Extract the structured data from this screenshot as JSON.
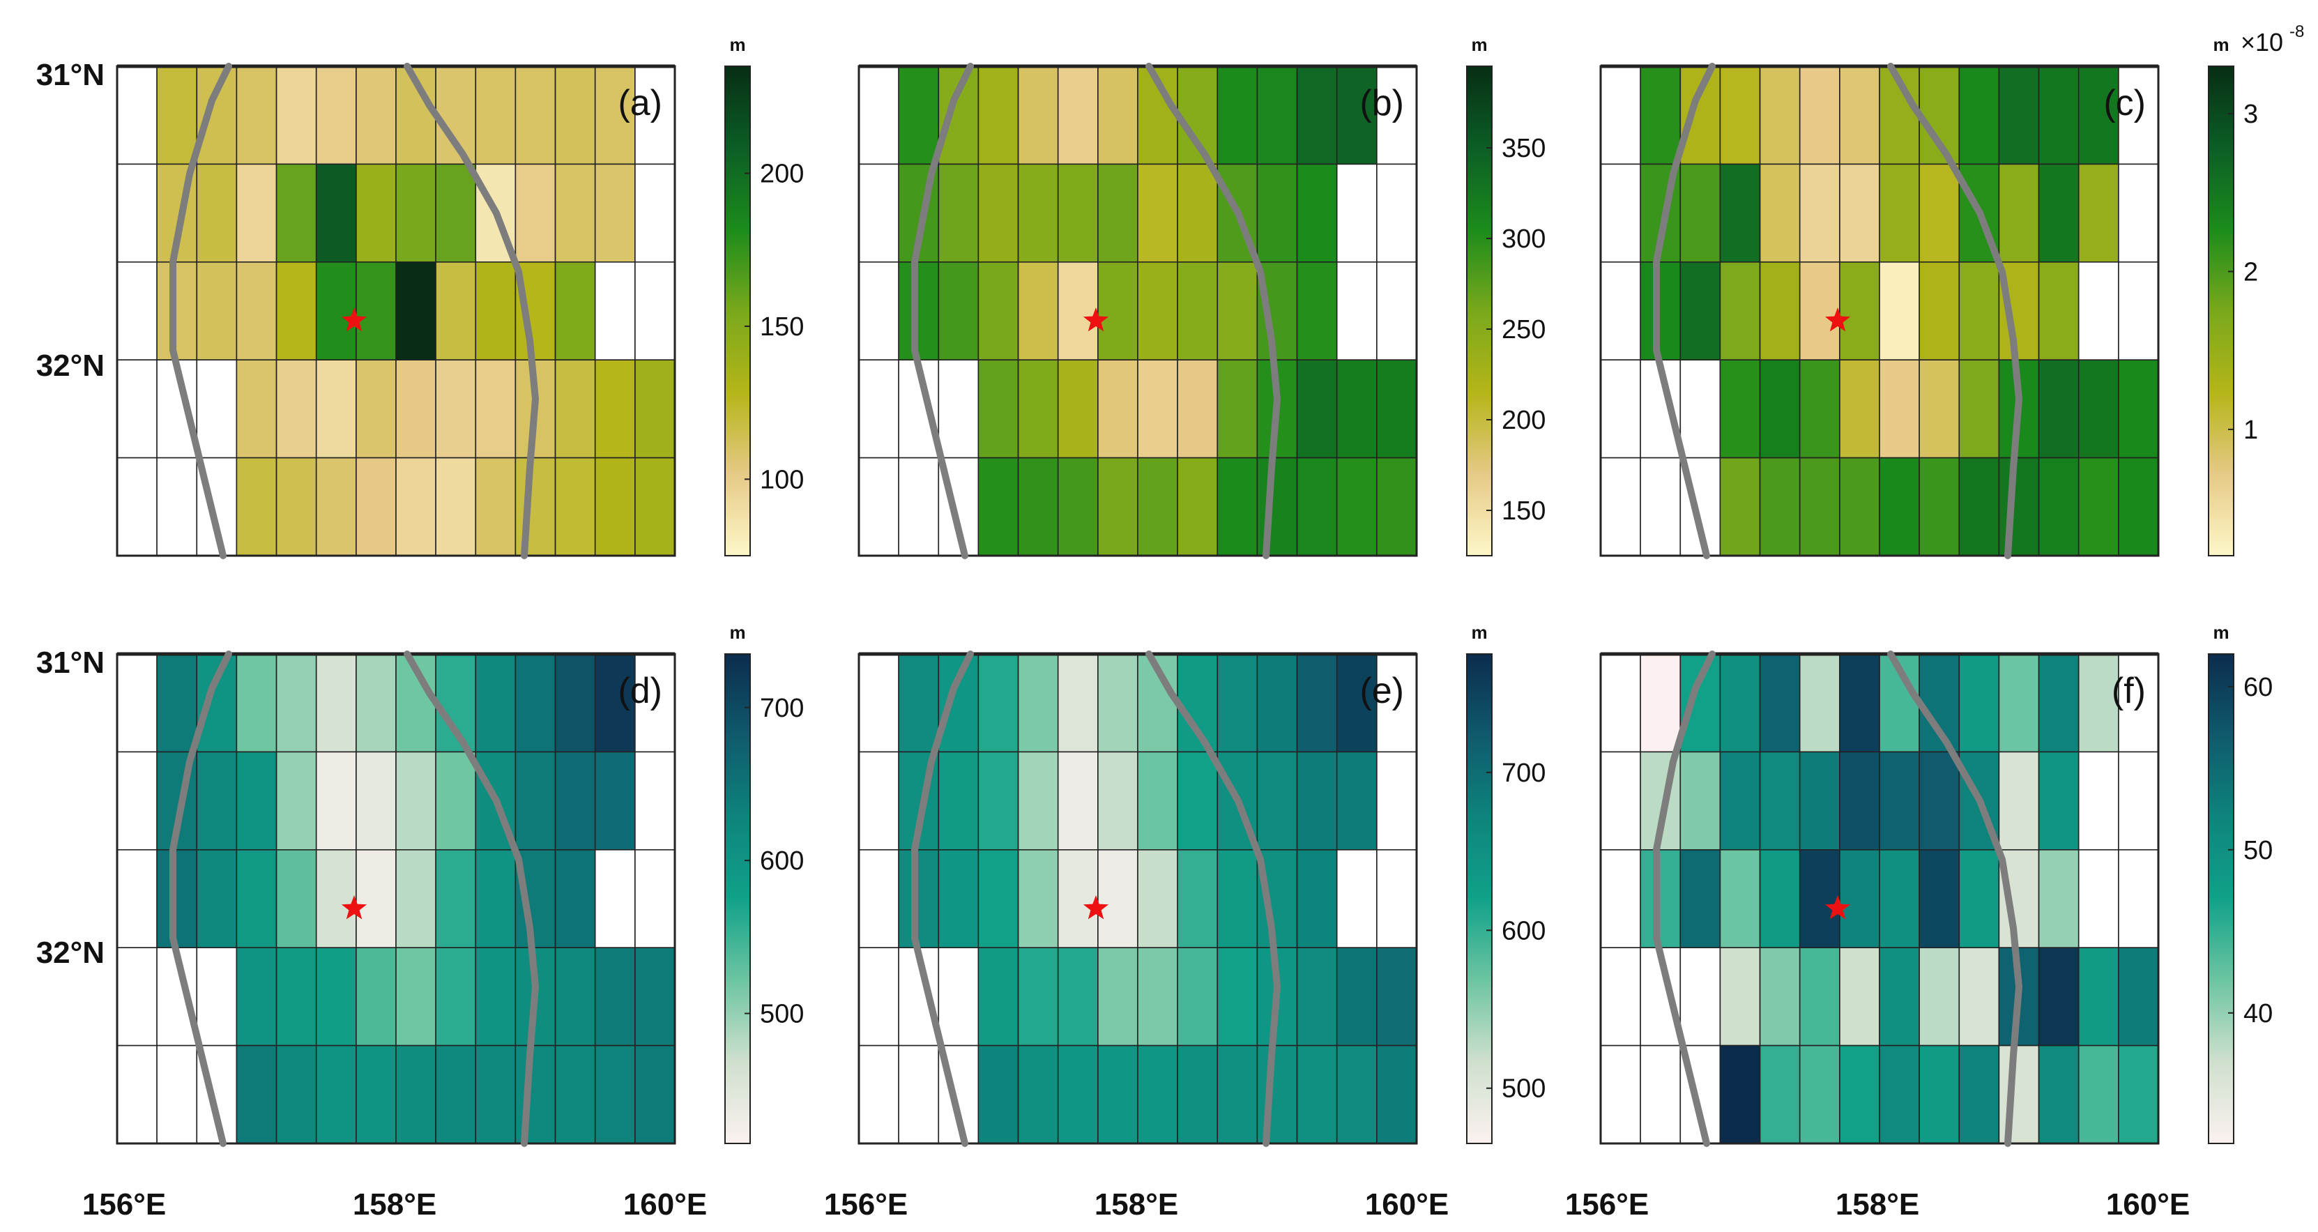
{
  "figure": {
    "lat_labels": [
      "31°N",
      "32°N"
    ],
    "lon_labels": [
      "156°E",
      "158°E",
      "160°E"
    ]
  },
  "chart_data": [
    {
      "type": "heatmap",
      "panel_label": "(a)",
      "unit": "m",
      "colorbar_ticks": [
        100,
        150,
        200
      ],
      "clim": [
        75,
        235
      ],
      "colormap": "yellow-green",
      "grid_cols": 14,
      "grid_rows": 5,
      "data_col_range": [
        1,
        13
      ],
      "values": [
        [
          null,
          120,
          115,
          110,
          95,
          100,
          105,
          112,
          108,
          110,
          110,
          112,
          110,
          null
        ],
        [
          null,
          115,
          118,
          95,
          160,
          210,
          140,
          155,
          160,
          85,
          100,
          110,
          108,
          null
        ],
        [
          null,
          110,
          112,
          108,
          128,
          180,
          175,
          235,
          118,
          130,
          128,
          152,
          null,
          null
        ],
        [
          null,
          null,
          null,
          108,
          98,
          92,
          108,
          102,
          98,
          100,
          110,
          118,
          128,
          138
        ],
        [
          null,
          null,
          null,
          118,
          115,
          108,
          102,
          95,
          92,
          110,
          118,
          122,
          130,
          135
        ]
      ]
    },
    {
      "type": "heatmap",
      "panel_label": "(b)",
      "unit": "m",
      "colorbar_ticks": [
        150,
        200,
        250,
        300,
        350
      ],
      "clim": [
        125,
        395
      ],
      "colormap": "yellow-green",
      "grid_cols": 14,
      "grid_rows": 5,
      "data_col_range": [
        1,
        13
      ],
      "values": [
        [
          null,
          300,
          250,
          230,
          185,
          165,
          185,
          230,
          250,
          305,
          310,
          340,
          345,
          null
        ],
        [
          null,
          285,
          265,
          240,
          250,
          255,
          265,
          210,
          225,
          280,
          295,
          305,
          null,
          null
        ],
        [
          null,
          300,
          285,
          260,
          195,
          155,
          255,
          235,
          250,
          250,
          285,
          300,
          null,
          null
        ],
        [
          null,
          null,
          null,
          270,
          255,
          225,
          175,
          165,
          170,
          270,
          300,
          330,
          320,
          320
        ],
        [
          null,
          null,
          null,
          300,
          295,
          285,
          260,
          270,
          250,
          305,
          315,
          310,
          300,
          295
        ]
      ]
    },
    {
      "type": "heatmap",
      "panel_label": "(c)",
      "unit": "m",
      "colorbar_ticks": [
        1,
        2,
        3
      ],
      "exponent_label": "×10",
      "exponent_value": "-8",
      "clim": [
        0.2,
        3.3
      ],
      "colormap": "yellow-green",
      "grid_cols": 14,
      "grid_rows": 5,
      "data_col_range": [
        1,
        13
      ],
      "values": [
        [
          null,
          2.2,
          1.3,
          1.2,
          0.9,
          0.7,
          0.8,
          1.5,
          1.6,
          2.3,
          2.6,
          2.5,
          2.5,
          null
        ],
        [
          null,
          2.1,
          2.0,
          2.6,
          0.9,
          0.6,
          0.6,
          1.5,
          1.2,
          2.2,
          1.6,
          2.5,
          1.5,
          null
        ],
        [
          null,
          2.3,
          2.6,
          1.7,
          1.4,
          0.7,
          1.6,
          0.3,
          1.3,
          1.6,
          1.3,
          1.6,
          null,
          null
        ],
        [
          null,
          null,
          null,
          2.2,
          2.4,
          2.1,
          1.1,
          0.7,
          0.9,
          1.7,
          2.3,
          2.6,
          2.5,
          2.3
        ],
        [
          null,
          null,
          null,
          1.8,
          2.0,
          2.0,
          2.0,
          2.3,
          2.1,
          2.5,
          2.5,
          2.4,
          2.2,
          2.3
        ]
      ]
    },
    {
      "type": "heatmap",
      "panel_label": "(d)",
      "unit": "m",
      "colorbar_ticks": [
        500,
        600,
        700
      ],
      "clim": [
        415,
        735
      ],
      "colormap": "teal",
      "grid_cols": 14,
      "grid_rows": 5,
      "data_col_range": [
        1,
        13
      ],
      "values": [
        [
          null,
          640,
          600,
          520,
          500,
          460,
          490,
          520,
          560,
          620,
          650,
          690,
          720,
          null
        ],
        [
          null,
          640,
          620,
          600,
          500,
          430,
          440,
          480,
          520,
          610,
          640,
          660,
          660,
          null
        ],
        [
          null,
          650,
          620,
          590,
          530,
          460,
          430,
          480,
          560,
          600,
          640,
          650,
          null,
          null
        ],
        [
          null,
          null,
          null,
          600,
          590,
          580,
          540,
          520,
          560,
          600,
          610,
          620,
          640,
          640
        ],
        [
          null,
          null,
          null,
          640,
          620,
          600,
          600,
          610,
          620,
          620,
          620,
          620,
          630,
          640
        ]
      ]
    },
    {
      "type": "heatmap",
      "panel_label": "(e)",
      "unit": "m",
      "colorbar_ticks": [
        500,
        600,
        700
      ],
      "clim": [
        465,
        775
      ],
      "colormap": "teal",
      "grid_cols": 14,
      "grid_rows": 5,
      "data_col_range": [
        1,
        13
      ],
      "values": [
        [
          null,
          660,
          640,
          610,
          560,
          500,
          540,
          560,
          630,
          660,
          680,
          720,
          750,
          null
        ],
        [
          null,
          650,
          630,
          610,
          540,
          480,
          520,
          570,
          620,
          650,
          660,
          680,
          680,
          null
        ],
        [
          null,
          660,
          640,
          620,
          550,
          490,
          480,
          520,
          600,
          630,
          650,
          670,
          null,
          null
        ],
        [
          null,
          null,
          null,
          630,
          610,
          610,
          560,
          560,
          590,
          620,
          640,
          660,
          690,
          700
        ],
        [
          null,
          null,
          null,
          670,
          650,
          640,
          640,
          640,
          650,
          650,
          650,
          650,
          660,
          680
        ]
      ]
    },
    {
      "type": "heatmap",
      "panel_label": "(f)",
      "unit": "m",
      "colorbar_ticks": [
        40,
        50,
        60
      ],
      "clim": [
        32,
        62
      ],
      "colormap": "teal",
      "grid_cols": 14,
      "grid_rows": 5,
      "data_col_range": [
        1,
        13
      ],
      "values": [
        [
          null,
          32,
          47,
          50,
          56,
          38,
          60,
          44,
          54,
          48,
          42,
          52,
          38,
          null
        ],
        [
          null,
          38,
          41,
          52,
          51,
          53,
          58,
          56,
          57,
          52,
          36,
          49,
          null,
          null
        ],
        [
          null,
          45,
          55,
          42,
          48,
          60,
          52,
          50,
          59,
          48,
          36,
          40,
          null,
          null
        ],
        [
          null,
          null,
          null,
          37,
          41,
          44,
          37,
          50,
          38,
          36,
          56,
          61,
          48,
          53
        ],
        [
          null,
          null,
          null,
          62,
          45,
          44,
          47,
          51,
          48,
          52,
          36,
          51,
          44,
          46
        ]
      ]
    }
  ]
}
